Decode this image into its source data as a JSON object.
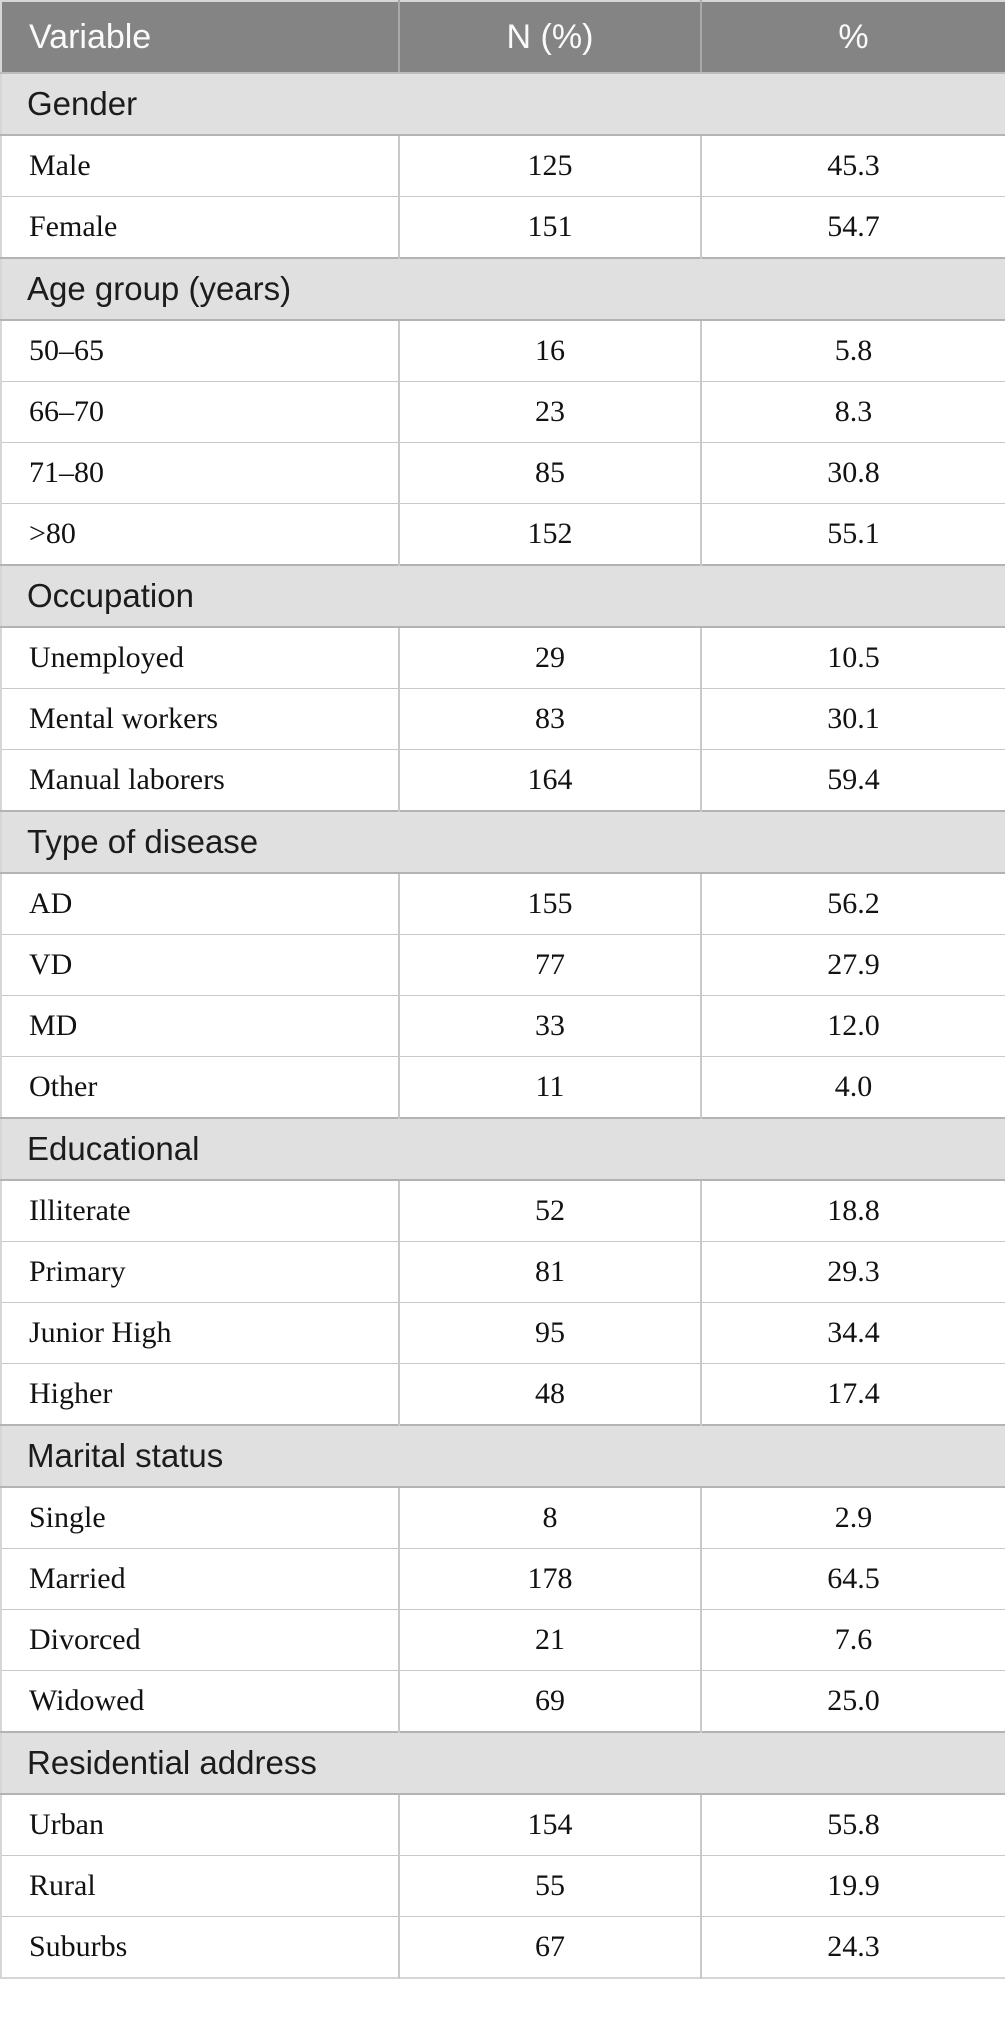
{
  "table": {
    "columns": [
      {
        "label": "Variable"
      },
      {
        "label": "N (%)"
      },
      {
        "label": "%"
      }
    ],
    "sections": [
      {
        "title": "Gender",
        "rows": [
          {
            "label": "Male",
            "n": "125",
            "pct": "45.3"
          },
          {
            "label": "Female",
            "n": "151",
            "pct": "54.7"
          }
        ]
      },
      {
        "title": "Age group (years)",
        "rows": [
          {
            "label": "50–65",
            "n": "16",
            "pct": "5.8"
          },
          {
            "label": "66–70",
            "n": "23",
            "pct": "8.3"
          },
          {
            "label": "71–80",
            "n": "85",
            "pct": "30.8"
          },
          {
            "label": ">80",
            "n": "152",
            "pct": "55.1"
          }
        ]
      },
      {
        "title": "Occupation",
        "rows": [
          {
            "label": "Unemployed",
            "n": "29",
            "pct": "10.5"
          },
          {
            "label": "Mental workers",
            "n": "83",
            "pct": "30.1"
          },
          {
            "label": "Manual laborers",
            "n": "164",
            "pct": "59.4"
          }
        ]
      },
      {
        "title": "Type of disease",
        "rows": [
          {
            "label": "AD",
            "n": "155",
            "pct": "56.2"
          },
          {
            "label": "VD",
            "n": "77",
            "pct": "27.9"
          },
          {
            "label": "MD",
            "n": "33",
            "pct": "12.0"
          },
          {
            "label": "Other",
            "n": "11",
            "pct": "4.0"
          }
        ]
      },
      {
        "title": "Educational",
        "rows": [
          {
            "label": "Illiterate",
            "n": "52",
            "pct": "18.8"
          },
          {
            "label": "Primary",
            "n": "81",
            "pct": "29.3"
          },
          {
            "label": "Junior High",
            "n": "95",
            "pct": "34.4"
          },
          {
            "label": "Higher",
            "n": "48",
            "pct": "17.4"
          }
        ]
      },
      {
        "title": "Marital status",
        "rows": [
          {
            "label": "Single",
            "n": "8",
            "pct": "2.9"
          },
          {
            "label": "Married",
            "n": "178",
            "pct": "64.5"
          },
          {
            "label": "Divorced",
            "n": "21",
            "pct": "7.6"
          },
          {
            "label": "Widowed",
            "n": "69",
            "pct": "25.0"
          }
        ]
      },
      {
        "title": "Residential address",
        "rows": [
          {
            "label": "Urban",
            "n": "154",
            "pct": "55.8"
          },
          {
            "label": "Rural",
            "n": "55",
            "pct": "19.9"
          },
          {
            "label": "Suburbs",
            "n": "67",
            "pct": "24.3"
          }
        ]
      }
    ],
    "colors": {
      "header_bg": "#848484",
      "header_text": "#fafafa",
      "section_bg": "#e0e0e0",
      "border": "#c9c9c9",
      "data_text": "#121212"
    }
  }
}
